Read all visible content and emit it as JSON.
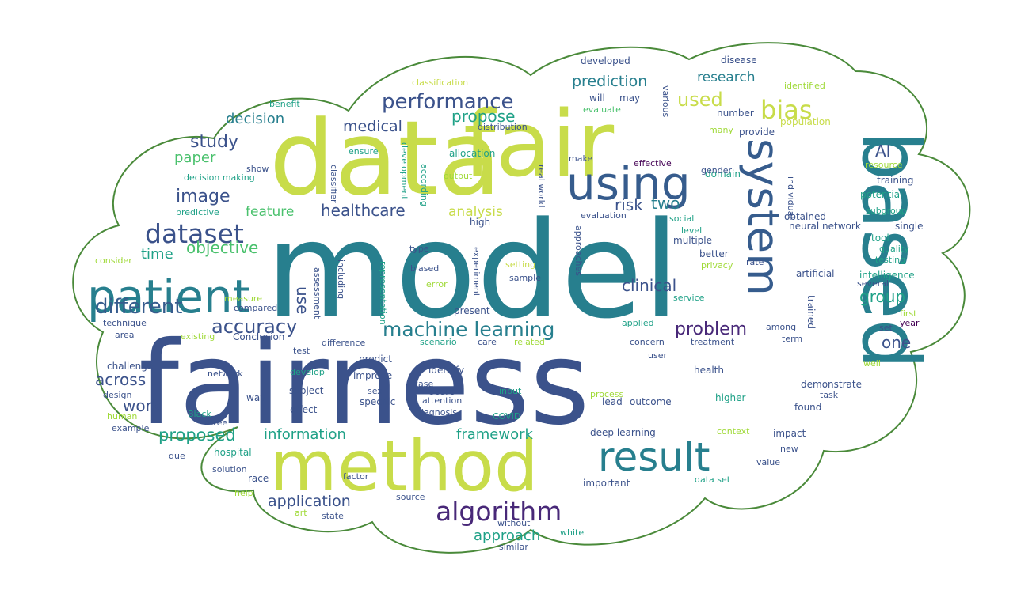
{
  "colors": {
    "background": "#ffffff",
    "outline": "#4a8a3a",
    "palette": {
      "v": "#46327e",
      "b": "#365c8d",
      "n": "#3b528b",
      "t": "#277f8e",
      "l": "#1fa187",
      "g": "#4ac16d",
      "y": "#a0da39",
      "c": "#c8dc4a",
      "p": "#482878",
      "d": "#440154"
    }
  },
  "words": [
    {
      "text": "model",
      "color": "t"
    },
    {
      "text": "fairness",
      "color": "n"
    },
    {
      "text": "data",
      "color": "c"
    },
    {
      "text": "fair",
      "color": "c"
    },
    {
      "text": "based",
      "color": "t"
    },
    {
      "text": "method",
      "color": "c"
    },
    {
      "text": "patient",
      "color": "t"
    },
    {
      "text": "using",
      "color": "b"
    },
    {
      "text": "system",
      "color": "b"
    },
    {
      "text": "result",
      "color": "t"
    },
    {
      "text": "algorithm",
      "color": "p"
    },
    {
      "text": "dataset",
      "color": "n"
    },
    {
      "text": "bias",
      "color": "c"
    },
    {
      "text": "performance",
      "color": "n"
    },
    {
      "text": "machine learning",
      "color": "t"
    },
    {
      "text": "accuracy",
      "color": "n"
    },
    {
      "text": "different",
      "color": "b"
    },
    {
      "text": "prediction",
      "color": "t"
    },
    {
      "text": "used",
      "color": "c"
    },
    {
      "text": "healthcare",
      "color": "n"
    },
    {
      "text": "problem",
      "color": "p"
    },
    {
      "text": "clinical",
      "color": "n"
    },
    {
      "text": "medical",
      "color": "n"
    },
    {
      "text": "study",
      "color": "n"
    },
    {
      "text": "image",
      "color": "n"
    },
    {
      "text": "research",
      "color": "t"
    },
    {
      "text": "proposed",
      "color": "l"
    },
    {
      "text": "application",
      "color": "n"
    },
    {
      "text": "information",
      "color": "l"
    },
    {
      "text": "framework",
      "color": "l"
    },
    {
      "text": "approach",
      "color": "l"
    },
    {
      "text": "feature",
      "color": "g"
    },
    {
      "text": "analysis",
      "color": "c"
    },
    {
      "text": "objective",
      "color": "g"
    },
    {
      "text": "paper",
      "color": "g"
    },
    {
      "text": "decision",
      "color": "t"
    },
    {
      "text": "propose",
      "color": "l"
    },
    {
      "text": "group",
      "color": "l"
    },
    {
      "text": "risk",
      "color": "n"
    },
    {
      "text": "two",
      "color": "t"
    },
    {
      "text": "one",
      "color": "n"
    },
    {
      "text": "AI",
      "color": "n"
    },
    {
      "text": "across",
      "color": "n"
    },
    {
      "text": "work",
      "color": "n"
    },
    {
      "text": "use",
      "color": "n"
    },
    {
      "text": "time",
      "color": "l"
    },
    {
      "text": "effective",
      "color": "d"
    },
    {
      "text": "developed",
      "color": "n"
    },
    {
      "text": "disease",
      "color": "n"
    },
    {
      "text": "identified",
      "color": "y"
    },
    {
      "text": "population",
      "color": "c"
    },
    {
      "text": "classification",
      "color": "c"
    },
    {
      "text": "will",
      "color": "n"
    },
    {
      "text": "may",
      "color": "n"
    },
    {
      "text": "evaluate",
      "color": "g"
    },
    {
      "text": "benefit",
      "color": "l"
    },
    {
      "text": "intelligence",
      "color": "l"
    },
    {
      "text": "distribution",
      "color": "n"
    },
    {
      "text": "number",
      "color": "n"
    },
    {
      "text": "provide",
      "color": "n"
    },
    {
      "text": "various",
      "color": "n"
    },
    {
      "text": "many",
      "color": "y"
    },
    {
      "text": "ensure",
      "color": "l"
    },
    {
      "text": "allocation",
      "color": "l"
    },
    {
      "text": "real world",
      "color": "n"
    },
    {
      "text": "classifier",
      "color": "n"
    },
    {
      "text": "make",
      "color": "n"
    },
    {
      "text": "domain",
      "color": "l"
    },
    {
      "text": "show",
      "color": "n"
    },
    {
      "text": "development",
      "color": "l"
    },
    {
      "text": "output",
      "color": "y"
    },
    {
      "text": "according",
      "color": "l"
    },
    {
      "text": "gender",
      "color": "n"
    },
    {
      "text": "individual",
      "color": "n"
    },
    {
      "text": "resource",
      "color": "y"
    },
    {
      "text": "decision making",
      "color": "l"
    },
    {
      "text": "training",
      "color": "n"
    },
    {
      "text": "potential",
      "color": "l"
    },
    {
      "text": "subgroup",
      "color": "l"
    },
    {
      "text": "predictive",
      "color": "l"
    },
    {
      "text": "evaluation",
      "color": "n"
    },
    {
      "text": "obtained",
      "color": "n"
    },
    {
      "text": "social",
      "color": "l"
    },
    {
      "text": "high",
      "color": "n"
    },
    {
      "text": "approaches",
      "color": "n"
    },
    {
      "text": "level",
      "color": "l"
    },
    {
      "text": "neural network",
      "color": "n"
    },
    {
      "text": "single",
      "color": "n"
    },
    {
      "text": "tool",
      "color": "l"
    },
    {
      "text": "multiple",
      "color": "n"
    },
    {
      "text": "quality",
      "color": "l"
    },
    {
      "text": "testing",
      "color": "l"
    },
    {
      "text": "type",
      "color": "n"
    },
    {
      "text": "consider",
      "color": "y"
    },
    {
      "text": "better",
      "color": "n"
    },
    {
      "text": "privacy",
      "color": "y"
    },
    {
      "text": "rate",
      "color": "n"
    },
    {
      "text": "artificial",
      "color": "n"
    },
    {
      "text": "experiment",
      "color": "n"
    },
    {
      "text": "setting",
      "color": "c"
    },
    {
      "text": "biased",
      "color": "n"
    },
    {
      "text": "representation",
      "color": "l"
    },
    {
      "text": "assessment",
      "color": "n"
    },
    {
      "text": "sample",
      "color": "n"
    },
    {
      "text": "several",
      "color": "n"
    },
    {
      "text": "error",
      "color": "y"
    },
    {
      "text": "including",
      "color": "n"
    },
    {
      "text": "service",
      "color": "l"
    },
    {
      "text": "measure",
      "color": "y"
    },
    {
      "text": "compared",
      "color": "n"
    },
    {
      "text": "present",
      "color": "n"
    },
    {
      "text": "first",
      "color": "y"
    },
    {
      "text": "technique",
      "color": "n"
    },
    {
      "text": "area",
      "color": "n"
    },
    {
      "text": "applied",
      "color": "l"
    },
    {
      "text": "among",
      "color": "n"
    },
    {
      "text": "trained",
      "color": "n"
    },
    {
      "text": "set",
      "color": "n"
    },
    {
      "text": "year",
      "color": "d"
    },
    {
      "text": "existing",
      "color": "y"
    },
    {
      "text": "Conclusion",
      "color": "n"
    },
    {
      "text": "difference",
      "color": "n"
    },
    {
      "text": "scenario",
      "color": "l"
    },
    {
      "text": "care",
      "color": "n"
    },
    {
      "text": "related",
      "color": "y"
    },
    {
      "text": "concern",
      "color": "n"
    },
    {
      "text": "treatment",
      "color": "n"
    },
    {
      "text": "term",
      "color": "n"
    },
    {
      "text": "test",
      "color": "n"
    },
    {
      "text": "predict",
      "color": "n"
    },
    {
      "text": "user",
      "color": "n"
    },
    {
      "text": "challenge",
      "color": "n"
    },
    {
      "text": "develop",
      "color": "l"
    },
    {
      "text": "improve",
      "color": "n"
    },
    {
      "text": "identify",
      "color": "n"
    },
    {
      "text": "network",
      "color": "n"
    },
    {
      "text": "health",
      "color": "n"
    },
    {
      "text": "well",
      "color": "y"
    },
    {
      "text": "design",
      "color": "n"
    },
    {
      "text": "score",
      "color": "n"
    },
    {
      "text": "input",
      "color": "l"
    },
    {
      "text": "process",
      "color": "y"
    },
    {
      "text": "demonstrate",
      "color": "n"
    },
    {
      "text": "task",
      "color": "n"
    },
    {
      "text": "way",
      "color": "n"
    },
    {
      "text": "subject",
      "color": "n"
    },
    {
      "text": "sex",
      "color": "n"
    },
    {
      "text": "case",
      "color": "n"
    },
    {
      "text": "higher",
      "color": "l"
    },
    {
      "text": "attention",
      "color": "n"
    },
    {
      "text": "specific",
      "color": "n"
    },
    {
      "text": "lead",
      "color": "n"
    },
    {
      "text": "outcome",
      "color": "n"
    },
    {
      "text": "found",
      "color": "n"
    },
    {
      "text": "effect",
      "color": "n"
    },
    {
      "text": "diagnosis",
      "color": "n"
    },
    {
      "text": "COVID",
      "color": "l"
    },
    {
      "text": "human",
      "color": "y"
    },
    {
      "text": "three",
      "color": "n"
    },
    {
      "text": "Black",
      "color": "l"
    },
    {
      "text": "example",
      "color": "n"
    },
    {
      "text": "deep learning",
      "color": "n"
    },
    {
      "text": "context",
      "color": "y"
    },
    {
      "text": "impact",
      "color": "n"
    },
    {
      "text": "due",
      "color": "n"
    },
    {
      "text": "hospital",
      "color": "l"
    },
    {
      "text": "value",
      "color": "n"
    },
    {
      "text": "new",
      "color": "n"
    },
    {
      "text": "solution",
      "color": "n"
    },
    {
      "text": "race",
      "color": "n"
    },
    {
      "text": "factor",
      "color": "n"
    },
    {
      "text": "important",
      "color": "n"
    },
    {
      "text": "data set",
      "color": "l"
    },
    {
      "text": "source",
      "color": "n"
    },
    {
      "text": "art",
      "color": "y"
    },
    {
      "text": "state",
      "color": "n"
    },
    {
      "text": "help",
      "color": "y"
    },
    {
      "text": "without",
      "color": "n"
    },
    {
      "text": "white",
      "color": "l"
    },
    {
      "text": "similar",
      "color": "n"
    }
  ]
}
